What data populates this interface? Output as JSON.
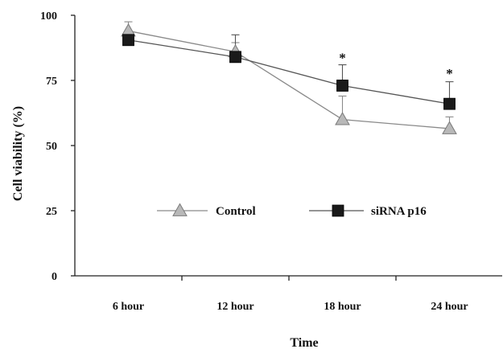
{
  "chart_data": {
    "type": "line",
    "title": "",
    "xlabel": "Time",
    "ylabel": "Cell viability (%)",
    "ylim": [
      0,
      100
    ],
    "yticks": [
      "0",
      "25",
      "50",
      "75",
      "100"
    ],
    "ytick_values": [
      0,
      25,
      50,
      75,
      100
    ],
    "categories": [
      "6 hour",
      "12 hour",
      "18 hour",
      "24 hour"
    ],
    "grid": false,
    "legend_position": "center",
    "series": [
      {
        "name": "Control",
        "marker": "triangle",
        "color": "#b8b8b8",
        "line_color": "#8a8a8a",
        "x_positions": [
          0.5,
          1.5,
          2.5,
          3.5
        ],
        "values": [
          94,
          86,
          60,
          56.5
        ],
        "errors": [
          3.5,
          3.5,
          9,
          4.5
        ]
      },
      {
        "name": "siRNA p16",
        "marker": "square",
        "color": "#1a1a1a",
        "line_color": "#555555",
        "x_positions": [
          0.5,
          1.5,
          2.5,
          3.5
        ],
        "values": [
          90.5,
          84,
          73,
          66
        ],
        "errors": [
          3.5,
          8.5,
          8,
          8.5
        ]
      }
    ],
    "annotations": [
      {
        "text": "*",
        "category_index": 2,
        "value": 85
      },
      {
        "text": "*",
        "category_index": 3,
        "value": 79
      }
    ]
  }
}
